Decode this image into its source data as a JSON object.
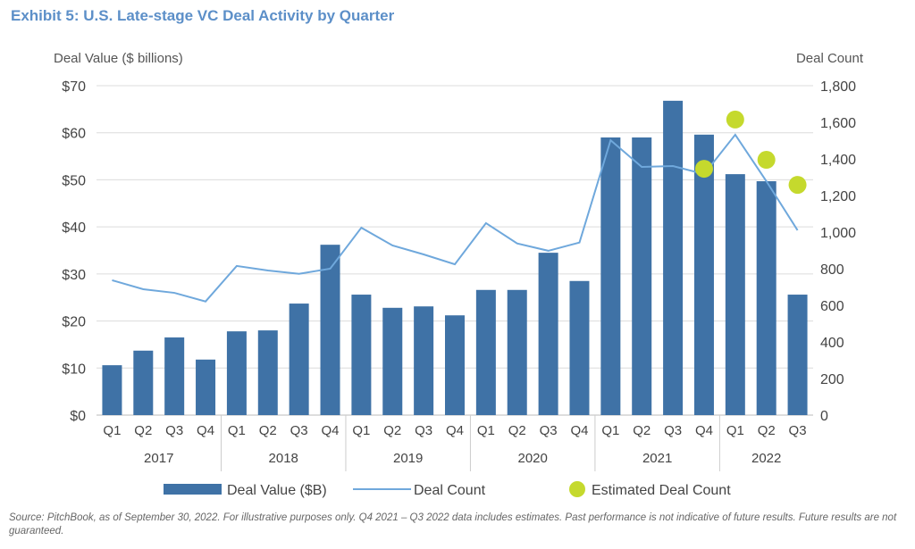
{
  "chart_data": {
    "type": "bar+line",
    "title": "Exhibit 5: U.S. Late-stage VC Deal Activity by Quarter",
    "ylabel": "Deal Value ($ billions)",
    "y2label": "Deal Count",
    "ylim": [
      0,
      70
    ],
    "y2lim": [
      0,
      1800
    ],
    "yticks": [
      "$0",
      "$10",
      "$20",
      "$30",
      "$40",
      "$50",
      "$60",
      "$70"
    ],
    "y2ticks": [
      "0",
      "200",
      "400",
      "600",
      "800",
      "1,000",
      "1,200",
      "1,400",
      "1,600",
      "1,800"
    ],
    "grid": true,
    "legend_position": "bottom",
    "years": [
      "2017",
      "2018",
      "2019",
      "2020",
      "2021",
      "2022"
    ],
    "categories": [
      "Q1",
      "Q2",
      "Q3",
      "Q4",
      "Q1",
      "Q2",
      "Q3",
      "Q4",
      "Q1",
      "Q2",
      "Q3",
      "Q4",
      "Q1",
      "Q2",
      "Q3",
      "Q4",
      "Q1",
      "Q2",
      "Q3",
      "Q4",
      "Q1",
      "Q2",
      "Q3"
    ],
    "series": [
      {
        "name": "Deal Value ($B)",
        "type": "bar",
        "axis": "left",
        "color": "#3f72a6",
        "values": [
          10.6,
          13.7,
          16.5,
          11.8,
          17.8,
          18.0,
          23.7,
          36.2,
          25.6,
          22.8,
          23.1,
          21.2,
          26.6,
          26.6,
          34.5,
          28.5,
          59.0,
          59.0,
          66.8,
          59.6,
          51.2,
          49.7,
          25.6
        ]
      },
      {
        "name": "Deal Count",
        "type": "line",
        "axis": "right",
        "color": "#6fa8dc",
        "values": [
          737,
          688,
          668,
          621,
          815,
          790,
          772,
          800,
          1024,
          927,
          878,
          824,
          1049,
          938,
          898,
          943,
          1502,
          1356,
          1361,
          1317,
          1532,
          1278,
          1010
        ]
      },
      {
        "name": "Estimated Deal Count",
        "type": "scatter",
        "axis": "right",
        "color": "#c5d92d",
        "values": [
          null,
          null,
          null,
          null,
          null,
          null,
          null,
          null,
          null,
          null,
          null,
          null,
          null,
          null,
          null,
          null,
          null,
          null,
          null,
          1346,
          1615,
          1395,
          1258
        ]
      }
    ]
  },
  "source": "Source: PitchBook, as of September 30, 2022. For illustrative purposes only. Q4 2021 – Q3 2022 data includes estimates. Past performance is not indicative of future results. Future results are not guaranteed."
}
